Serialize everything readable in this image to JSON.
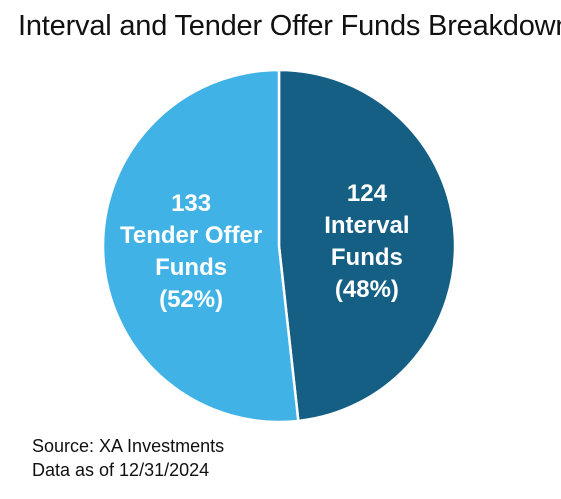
{
  "chart_data": {
    "type": "pie",
    "title": "Interval and Tender Offer Funds Breakdown",
    "slices": [
      {
        "label_lines": [
          "124",
          "Interval",
          "Funds",
          "(48%)"
        ],
        "category": "Interval Funds",
        "value": 124,
        "percent": 48,
        "color": "#155e84"
      },
      {
        "label_lines": [
          "133",
          "Tender Offer",
          "Funds",
          "(52%)"
        ],
        "category": "Tender Offer Funds",
        "value": 133,
        "percent": 52,
        "color": "#41b2e6"
      }
    ],
    "start": "12 o'clock",
    "direction": "clockwise",
    "legend": "none"
  },
  "footer": {
    "source": "Source: XA Investments",
    "as_of": "Data as of 12/31/2024"
  }
}
